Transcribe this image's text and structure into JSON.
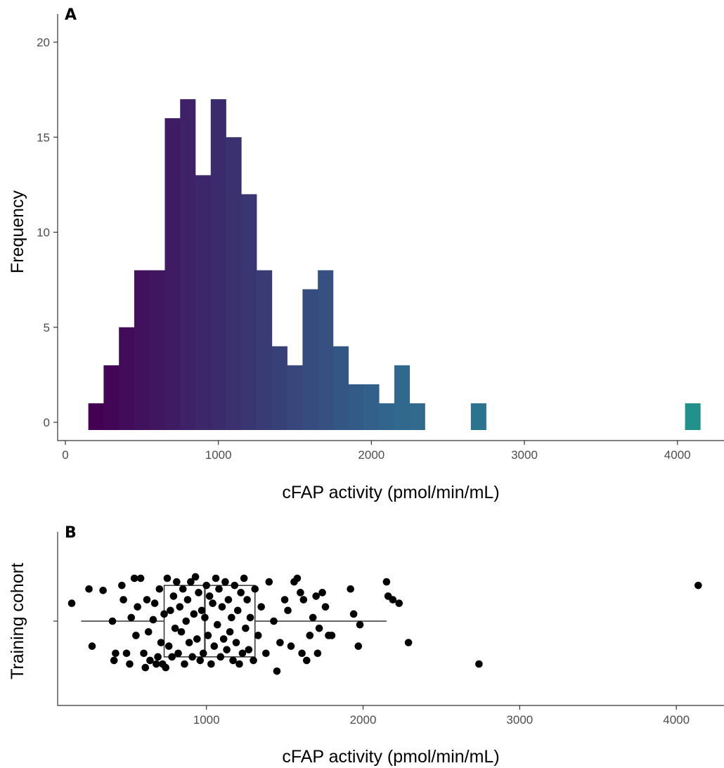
{
  "chart_data": [
    {
      "panel": "A",
      "type": "bar",
      "subtype": "histogram",
      "xlabel": "cFAP activity (pmol/min/mL)",
      "ylabel": "Frequency",
      "xlim": [
        0,
        4300
      ],
      "ylim": [
        0,
        20
      ],
      "x_ticks": [
        0,
        1000,
        2000,
        3000,
        4000
      ],
      "y_ticks": [
        0,
        5,
        10,
        15,
        20
      ],
      "bin_width": 100,
      "bins": [
        {
          "x0": 150,
          "count": 1
        },
        {
          "x0": 250,
          "count": 3
        },
        {
          "x0": 350,
          "count": 5
        },
        {
          "x0": 450,
          "count": 8
        },
        {
          "x0": 550,
          "count": 8
        },
        {
          "x0": 650,
          "count": 16
        },
        {
          "x0": 750,
          "count": 17
        },
        {
          "x0": 850,
          "count": 13
        },
        {
          "x0": 950,
          "count": 17
        },
        {
          "x0": 1050,
          "count": 15
        },
        {
          "x0": 1150,
          "count": 12
        },
        {
          "x0": 1250,
          "count": 8
        },
        {
          "x0": 1350,
          "count": 4
        },
        {
          "x0": 1450,
          "count": 3
        },
        {
          "x0": 1550,
          "count": 7
        },
        {
          "x0": 1650,
          "count": 8
        },
        {
          "x0": 1750,
          "count": 4
        },
        {
          "x0": 1850,
          "count": 2
        },
        {
          "x0": 1950,
          "count": 2
        },
        {
          "x0": 2050,
          "count": 1
        },
        {
          "x0": 2150,
          "count": 3
        },
        {
          "x0": 2250,
          "count": 1
        },
        {
          "x0": 2650,
          "count": 1
        },
        {
          "x0": 4050,
          "count": 1
        }
      ],
      "fill_scale": [
        "#440154",
        "#31688e",
        "#21918c"
      ],
      "grid": false,
      "legend": "none"
    },
    {
      "panel": "B",
      "type": "scatter",
      "subtype": "boxplot-with-jitter",
      "xlabel": "cFAP activity (pmol/min/mL)",
      "ylabel": "Training cohort",
      "xlim": [
        50,
        4300
      ],
      "x_ticks": [
        1000,
        2000,
        3000,
        4000
      ],
      "ylim": [
        -1.2,
        1.2
      ],
      "box": {
        "whisker_low": 200,
        "q1": 730,
        "median": 990,
        "q3": 1310,
        "whisker_high": 2150
      },
      "box_half_height": 0.5,
      "points": [
        [
          140,
          0.25
        ],
        [
          250,
          0.45
        ],
        [
          270,
          -0.35
        ],
        [
          340,
          0.43
        ],
        [
          400,
          0.0
        ],
        [
          410,
          -0.55
        ],
        [
          420,
          -0.45
        ],
        [
          460,
          0.5
        ],
        [
          470,
          0.3
        ],
        [
          490,
          -0.45
        ],
        [
          510,
          -0.6
        ],
        [
          520,
          0.05
        ],
        [
          540,
          0.6
        ],
        [
          550,
          -0.2
        ],
        [
          560,
          0.2
        ],
        [
          580,
          0.6
        ],
        [
          600,
          -0.45
        ],
        [
          610,
          -0.65
        ],
        [
          620,
          0.3
        ],
        [
          630,
          -0.15
        ],
        [
          640,
          -0.55
        ],
        [
          660,
          0.02
        ],
        [
          670,
          0.25
        ],
        [
          680,
          -0.6
        ],
        [
          690,
          -0.5
        ],
        [
          700,
          0.45
        ],
        [
          710,
          -0.3
        ],
        [
          720,
          -0.6
        ],
        [
          730,
          0.1
        ],
        [
          740,
          -0.65
        ],
        [
          750,
          0.6
        ],
        [
          760,
          -0.35
        ],
        [
          770,
          0.15
        ],
        [
          780,
          -0.5
        ],
        [
          790,
          0.35
        ],
        [
          800,
          -0.1
        ],
        [
          810,
          0.55
        ],
        [
          820,
          -0.45
        ],
        [
          830,
          0.2
        ],
        [
          840,
          -0.15
        ],
        [
          850,
          0.45
        ],
        [
          860,
          -0.6
        ],
        [
          870,
          0.0
        ],
        [
          880,
          0.3
        ],
        [
          890,
          -0.3
        ],
        [
          900,
          0.55
        ],
        [
          910,
          -0.5
        ],
        [
          920,
          0.1
        ],
        [
          930,
          0.62
        ],
        [
          940,
          -0.25
        ],
        [
          950,
          0.4
        ],
        [
          960,
          -0.55
        ],
        [
          970,
          0.15
        ],
        [
          980,
          -0.45
        ],
        [
          990,
          0.05
        ],
        [
          1000,
          0.5
        ],
        [
          1010,
          -0.2
        ],
        [
          1020,
          0.35
        ],
        [
          1030,
          -0.6
        ],
        [
          1040,
          0.25
        ],
        [
          1050,
          -0.35
        ],
        [
          1060,
          0.6
        ],
        [
          1070,
          -0.05
        ],
        [
          1080,
          0.45
        ],
        [
          1090,
          -0.5
        ],
        [
          1100,
          0.2
        ],
        [
          1110,
          -0.25
        ],
        [
          1120,
          0.55
        ],
        [
          1130,
          -0.4
        ],
        [
          1140,
          0.3
        ],
        [
          1150,
          -0.15
        ],
        [
          1160,
          0.05
        ],
        [
          1170,
          -0.55
        ],
        [
          1180,
          0.5
        ],
        [
          1190,
          -0.3
        ],
        [
          1200,
          0.15
        ],
        [
          1210,
          -0.6
        ],
        [
          1220,
          0.4
        ],
        [
          1230,
          -0.45
        ],
        [
          1240,
          0.6
        ],
        [
          1250,
          -0.1
        ],
        [
          1260,
          0.3
        ],
        [
          1270,
          -0.4
        ],
        [
          1280,
          0.05
        ],
        [
          1300,
          -0.55
        ],
        [
          1310,
          0.45
        ],
        [
          1330,
          -0.2
        ],
        [
          1350,
          0.2
        ],
        [
          1380,
          -0.45
        ],
        [
          1400,
          0.55
        ],
        [
          1430,
          0.0
        ],
        [
          1450,
          -0.7
        ],
        [
          1470,
          -0.3
        ],
        [
          1500,
          0.3
        ],
        [
          1520,
          0.15
        ],
        [
          1540,
          -0.35
        ],
        [
          1560,
          0.55
        ],
        [
          1580,
          0.6
        ],
        [
          1600,
          0.4
        ],
        [
          1610,
          -0.45
        ],
        [
          1620,
          0.3
        ],
        [
          1640,
          -0.55
        ],
        [
          1660,
          -0.2
        ],
        [
          1680,
          0.05
        ],
        [
          1700,
          0.35
        ],
        [
          1710,
          -0.45
        ],
        [
          1720,
          -0.1
        ],
        [
          1740,
          0.4
        ],
        [
          1760,
          0.2
        ],
        [
          1780,
          -0.2
        ],
        [
          1800,
          -0.2
        ],
        [
          1920,
          0.45
        ],
        [
          1940,
          0.1
        ],
        [
          1970,
          -0.35
        ],
        [
          1980,
          -0.05
        ],
        [
          2150,
          0.55
        ],
        [
          2160,
          0.35
        ],
        [
          2190,
          0.3
        ],
        [
          2230,
          0.25
        ],
        [
          2290,
          -0.3
        ],
        [
          2740,
          -0.6
        ],
        [
          4140,
          0.5
        ]
      ],
      "grid": false,
      "legend": "none"
    }
  ]
}
